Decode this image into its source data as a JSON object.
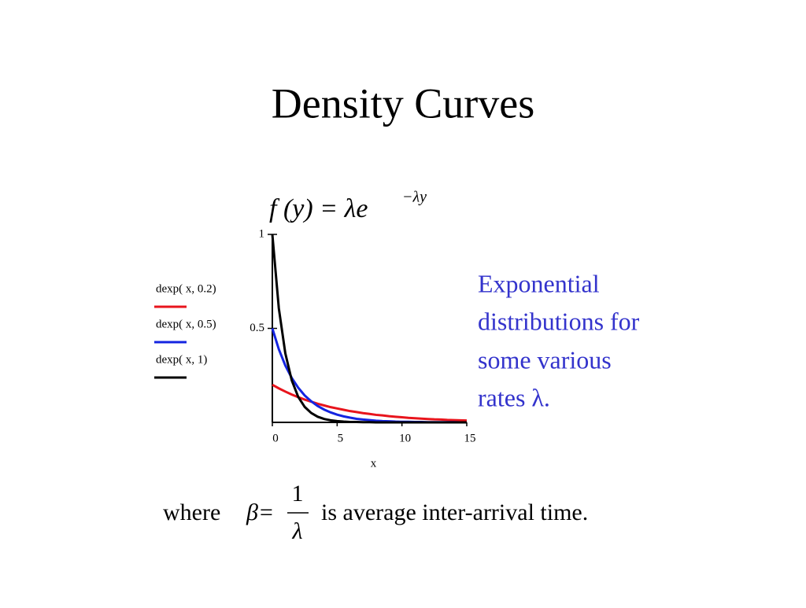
{
  "title": "Density Curves",
  "formula": {
    "main": "f (y) = λe",
    "exponent": "−λy"
  },
  "note": {
    "lines": [
      "Exponential",
      "distributions for",
      "some various",
      "rates λ."
    ]
  },
  "footer": {
    "prefix": "where",
    "lhs": "β=",
    "numerator": "1",
    "denominator": "λ",
    "suffix": "is average inter-arrival time."
  },
  "chart_data": {
    "type": "line",
    "x_label": "x",
    "x": [
      0,
      0.5,
      1,
      1.5,
      2,
      2.5,
      3,
      3.5,
      4,
      4.5,
      5,
      5.5,
      6,
      6.5,
      7,
      7.5,
      8,
      8.5,
      9,
      9.5,
      10,
      10.5,
      11,
      11.5,
      12,
      12.5,
      13,
      13.5,
      14,
      14.5,
      15
    ],
    "series": [
      {
        "name": "dexp( x, 0.2)",
        "color": "#e8141c",
        "values": [
          0.2,
          0.181,
          0.164,
          0.148,
          0.134,
          0.121,
          0.11,
          0.099,
          0.09,
          0.081,
          0.074,
          0.067,
          0.06,
          0.055,
          0.049,
          0.045,
          0.04,
          0.037,
          0.033,
          0.03,
          0.027,
          0.024,
          0.022,
          0.02,
          0.018,
          0.016,
          0.015,
          0.013,
          0.012,
          0.011,
          0.01
        ]
      },
      {
        "name": "dexp( x, 0.5)",
        "color": "#1424e0",
        "values": [
          0.5,
          0.389,
          0.303,
          0.236,
          0.184,
          0.143,
          0.112,
          0.087,
          0.068,
          0.053,
          0.041,
          0.032,
          0.025,
          0.019,
          0.015,
          0.012,
          0.009,
          0.007,
          0.006,
          0.004,
          0.003,
          0.003,
          0.002,
          0.002,
          0.001,
          0.001,
          0.001,
          0.001,
          0.001,
          0,
          0
        ]
      },
      {
        "name": "dexp( x, 1)",
        "color": "#000000",
        "values": [
          1,
          0.607,
          0.368,
          0.223,
          0.135,
          0.082,
          0.05,
          0.03,
          0.018,
          0.011,
          0.007,
          0.004,
          0.002,
          0.002,
          0.001,
          0.001,
          0,
          0,
          0,
          0,
          0,
          0,
          0,
          0,
          0,
          0,
          0,
          0,
          0,
          0,
          0
        ]
      }
    ],
    "xlim": [
      0,
      15
    ],
    "ylim": [
      0,
      1
    ],
    "xticks": [
      0,
      5,
      10,
      15
    ],
    "yticks": [
      0.5,
      1
    ]
  }
}
